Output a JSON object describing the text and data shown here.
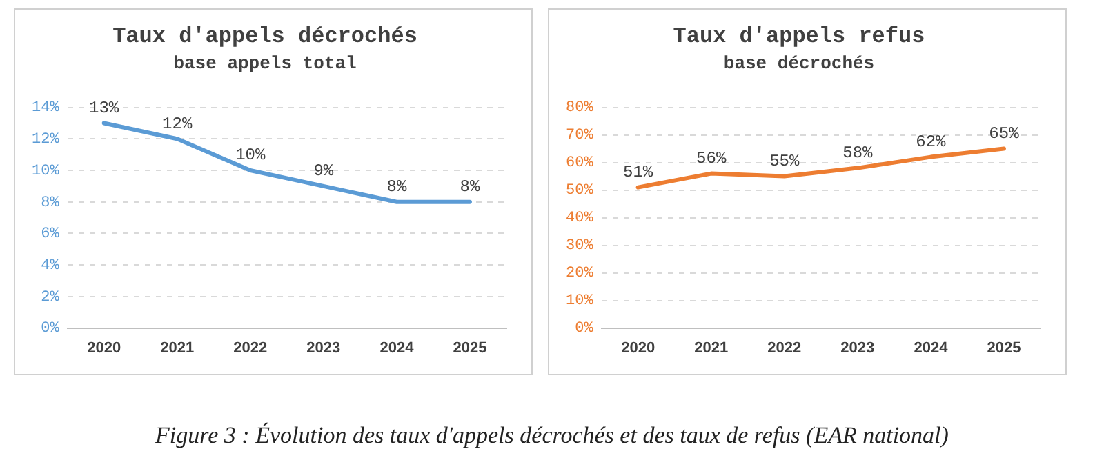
{
  "chart_data": [
    {
      "type": "line",
      "title": "Taux d'appels décrochés",
      "subtitle": "base appels total",
      "categories": [
        "2020",
        "2021",
        "2022",
        "2023",
        "2024",
        "2025"
      ],
      "series": [
        {
          "color": "#5b9bd5",
          "values": [
            13,
            12,
            10,
            9,
            8,
            8
          ],
          "value_labels": [
            "13%",
            "12%",
            "10%",
            "9%",
            "8%",
            "8%"
          ]
        }
      ],
      "ylim": [
        0,
        14
      ],
      "yticks": [
        {
          "value": 0,
          "label": "0%"
        },
        {
          "value": 2,
          "label": "2%"
        },
        {
          "value": 4,
          "label": "4%"
        },
        {
          "value": 6,
          "label": "6%"
        },
        {
          "value": 8,
          "label": "8%"
        },
        {
          "value": 10,
          "label": "10%"
        },
        {
          "value": 12,
          "label": "12%"
        },
        {
          "value": 14,
          "label": "14%"
        }
      ],
      "grid": "y",
      "legend": false,
      "line_style": "solid"
    },
    {
      "type": "line",
      "title": "Taux d'appels refus",
      "subtitle": "base décrochés",
      "categories": [
        "2020",
        "2021",
        "2022",
        "2023",
        "2024",
        "2025"
      ],
      "series": [
        {
          "color": "#ed7d31",
          "values": [
            51,
            56,
            55,
            58,
            62,
            65
          ],
          "value_labels": [
            "51%",
            "56%",
            "55%",
            "58%",
            "62%",
            "65%"
          ]
        }
      ],
      "ylim": [
        0,
        80
      ],
      "yticks": [
        {
          "value": 0,
          "label": "0%"
        },
        {
          "value": 10,
          "label": "10%"
        },
        {
          "value": 20,
          "label": "20%"
        },
        {
          "value": 30,
          "label": "30%"
        },
        {
          "value": 40,
          "label": "40%"
        },
        {
          "value": 50,
          "label": "50%"
        },
        {
          "value": 60,
          "label": "60%"
        },
        {
          "value": 70,
          "label": "70%"
        },
        {
          "value": 80,
          "label": "80%"
        }
      ],
      "grid": "y",
      "legend": false,
      "line_style": "solid",
      "annotations": [
        "Figure 3 : Évolution des taux d'appels décrochés et des taux de refus (EAR national)"
      ]
    }
  ]
}
